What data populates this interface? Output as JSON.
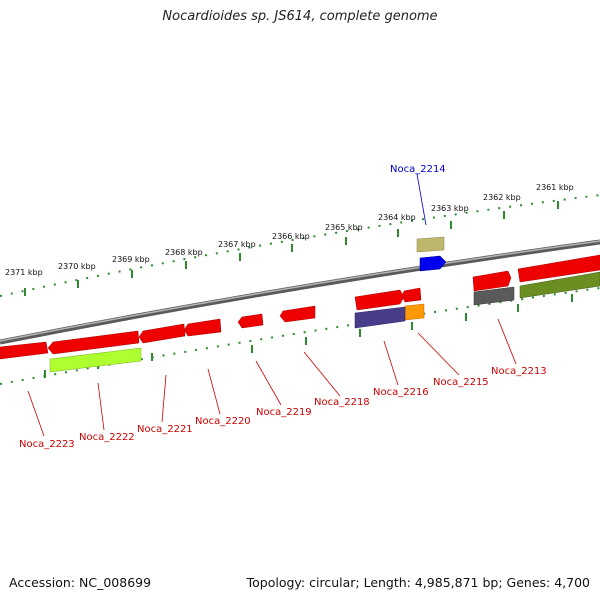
{
  "title": "Nocardioides sp. JS614, complete genome",
  "footer": {
    "accession": "Accession: NC_008699",
    "topology": "Topology: circular; Length: 4,985,871 bp; Genes: 4,700"
  },
  "colors": {
    "backbone": "#808080",
    "ticks": "#2e8b2e",
    "label_red": "#cc0000",
    "label_blue": "#0000cc"
  },
  "tick_labels": [
    "2361 kbp",
    "2362 kbp",
    "2363 kbp",
    "2364 kbp",
    "2365 kbp",
    "2366 kbp",
    "2367 kbp",
    "2368 kbp",
    "2369 kbp",
    "2370 kbp",
    "2371 kbp"
  ],
  "gene_labels": [
    {
      "name": "Noca_2214",
      "color": "blue"
    },
    {
      "name": "Noca_2213",
      "color": "red"
    },
    {
      "name": "Noca_2215",
      "color": "red"
    },
    {
      "name": "Noca_2216",
      "color": "red"
    },
    {
      "name": "Noca_2218",
      "color": "red"
    },
    {
      "name": "Noca_2219",
      "color": "red"
    },
    {
      "name": "Noca_2220",
      "color": "red"
    },
    {
      "name": "Noca_2221",
      "color": "red"
    },
    {
      "name": "Noca_2222",
      "color": "red"
    },
    {
      "name": "Noca_2223",
      "color": "red"
    }
  ]
}
